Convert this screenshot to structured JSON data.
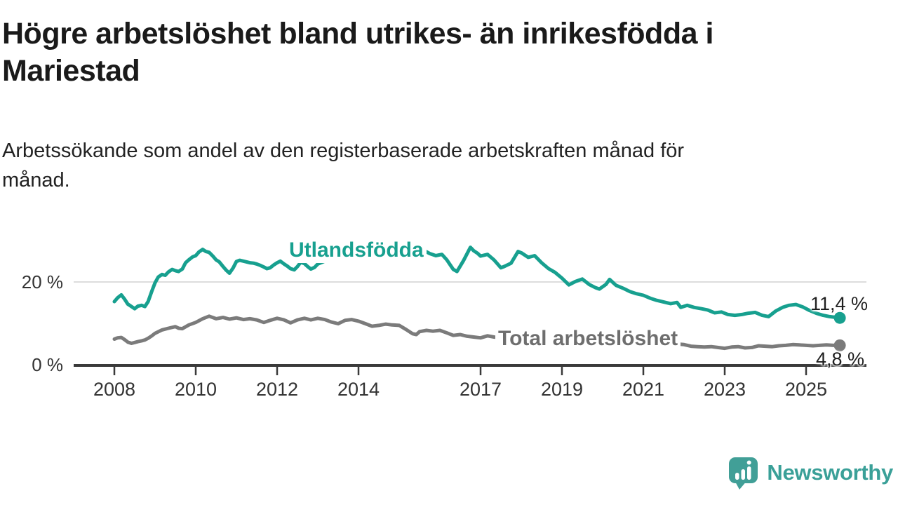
{
  "chart_data": {
    "type": "line",
    "title": "Högre arbetslöshet bland utrikes- än inrikesfödda i Mariestad",
    "subtitle": "Arbetssökande som andel av den registerbaserade arbetskraften månad för månad.",
    "x_axis": {
      "range": [
        2007.0,
        2026.5
      ],
      "ticks": [
        {
          "value": 2008,
          "label": "2008"
        },
        {
          "value": 2010,
          "label": "2010"
        },
        {
          "value": 2012,
          "label": "2012"
        },
        {
          "value": 2014,
          "label": "2014"
        },
        {
          "value": 2017,
          "label": "2017"
        },
        {
          "value": 2019,
          "label": "2019"
        },
        {
          "value": 2021,
          "label": "2021"
        },
        {
          "value": 2023,
          "label": "2023"
        },
        {
          "value": 2025,
          "label": "2025"
        }
      ]
    },
    "y_axis": {
      "range": [
        0,
        32
      ],
      "unit": "%",
      "ticks": [
        {
          "value": 0,
          "label": "0 %"
        },
        {
          "value": 20,
          "label": "20 %"
        }
      ],
      "gridlines": [
        20
      ]
    },
    "colors": {
      "axis": "#3a3a3a",
      "gridline": "#dddddd",
      "tick_text": "#333333"
    },
    "series": [
      {
        "name": "Utlandsfödda",
        "color": "#17a08f",
        "label_color": "#17a08f",
        "end_label": "11,4 %",
        "end_value": 11.4,
        "points": [
          [
            2008.0,
            15.3
          ],
          [
            2008.08,
            16.2
          ],
          [
            2008.17,
            16.9
          ],
          [
            2008.25,
            15.9
          ],
          [
            2008.33,
            14.7
          ],
          [
            2008.42,
            14.1
          ],
          [
            2008.5,
            13.6
          ],
          [
            2008.58,
            14.2
          ],
          [
            2008.67,
            14.4
          ],
          [
            2008.75,
            14.1
          ],
          [
            2008.83,
            15.3
          ],
          [
            2008.92,
            17.8
          ],
          [
            2009.0,
            19.8
          ],
          [
            2009.08,
            21.2
          ],
          [
            2009.17,
            21.8
          ],
          [
            2009.25,
            21.6
          ],
          [
            2009.33,
            22.4
          ],
          [
            2009.42,
            23.0
          ],
          [
            2009.5,
            22.7
          ],
          [
            2009.58,
            22.5
          ],
          [
            2009.67,
            23.1
          ],
          [
            2009.75,
            24.6
          ],
          [
            2009.83,
            25.3
          ],
          [
            2009.92,
            26.0
          ],
          [
            2010.0,
            26.3
          ],
          [
            2010.08,
            27.2
          ],
          [
            2010.17,
            27.8
          ],
          [
            2010.25,
            27.3
          ],
          [
            2010.33,
            27.1
          ],
          [
            2010.42,
            26.2
          ],
          [
            2010.5,
            25.3
          ],
          [
            2010.58,
            24.8
          ],
          [
            2010.67,
            23.7
          ],
          [
            2010.75,
            22.8
          ],
          [
            2010.83,
            22.1
          ],
          [
            2010.92,
            23.4
          ],
          [
            2011.0,
            24.9
          ],
          [
            2011.08,
            25.2
          ],
          [
            2011.17,
            25.0
          ],
          [
            2011.25,
            24.8
          ],
          [
            2011.33,
            24.6
          ],
          [
            2011.42,
            24.5
          ],
          [
            2011.5,
            24.3
          ],
          [
            2011.58,
            24.0
          ],
          [
            2011.67,
            23.6
          ],
          [
            2011.75,
            23.2
          ],
          [
            2011.83,
            23.4
          ],
          [
            2011.92,
            24.1
          ],
          [
            2012.0,
            24.6
          ],
          [
            2012.08,
            25.0
          ],
          [
            2012.17,
            24.3
          ],
          [
            2012.25,
            23.8
          ],
          [
            2012.33,
            23.2
          ],
          [
            2012.42,
            22.9
          ],
          [
            2012.5,
            23.7
          ],
          [
            2012.58,
            24.7
          ],
          [
            2012.67,
            24.4
          ],
          [
            2012.75,
            23.7
          ],
          [
            2012.83,
            23.1
          ],
          [
            2012.92,
            23.5
          ],
          [
            2013.0,
            24.3
          ],
          [
            2013.17,
            25.0
          ],
          [
            2013.33,
            25.4
          ],
          [
            2013.5,
            25.6
          ],
          [
            2013.67,
            25.8
          ],
          [
            2013.83,
            26.8
          ],
          [
            2014.0,
            28.4
          ],
          [
            2014.17,
            29.7
          ],
          [
            2014.33,
            29.3
          ],
          [
            2014.5,
            28.8
          ],
          [
            2014.67,
            29.0
          ],
          [
            2014.83,
            29.4
          ],
          [
            2015.0,
            29.6
          ],
          [
            2015.17,
            29.2
          ],
          [
            2015.33,
            28.2
          ],
          [
            2015.5,
            27.4
          ],
          [
            2015.6,
            27.6
          ],
          [
            2015.75,
            26.8
          ],
          [
            2015.9,
            26.3
          ],
          [
            2016.05,
            26.6
          ],
          [
            2016.17,
            25.3
          ],
          [
            2016.33,
            23.0
          ],
          [
            2016.42,
            22.5
          ],
          [
            2016.58,
            25.1
          ],
          [
            2016.75,
            28.3
          ],
          [
            2016.83,
            27.5
          ],
          [
            2016.92,
            26.9
          ],
          [
            2017.0,
            26.2
          ],
          [
            2017.17,
            26.6
          ],
          [
            2017.33,
            25.3
          ],
          [
            2017.5,
            23.4
          ],
          [
            2017.58,
            23.7
          ],
          [
            2017.75,
            24.5
          ],
          [
            2017.92,
            27.3
          ],
          [
            2018.0,
            27.0
          ],
          [
            2018.17,
            25.9
          ],
          [
            2018.33,
            26.3
          ],
          [
            2018.5,
            24.6
          ],
          [
            2018.67,
            23.2
          ],
          [
            2018.83,
            22.3
          ],
          [
            2019.0,
            20.9
          ],
          [
            2019.17,
            19.3
          ],
          [
            2019.33,
            20.1
          ],
          [
            2019.5,
            20.7
          ],
          [
            2019.67,
            19.4
          ],
          [
            2019.83,
            18.6
          ],
          [
            2019.92,
            18.3
          ],
          [
            2020.08,
            19.4
          ],
          [
            2020.17,
            20.6
          ],
          [
            2020.33,
            19.2
          ],
          [
            2020.5,
            18.5
          ],
          [
            2020.67,
            17.7
          ],
          [
            2020.83,
            17.2
          ],
          [
            2021.0,
            16.8
          ],
          [
            2021.17,
            16.1
          ],
          [
            2021.33,
            15.6
          ],
          [
            2021.5,
            15.2
          ],
          [
            2021.67,
            14.8
          ],
          [
            2021.83,
            15.1
          ],
          [
            2021.92,
            13.9
          ],
          [
            2022.08,
            14.4
          ],
          [
            2022.25,
            13.9
          ],
          [
            2022.42,
            13.6
          ],
          [
            2022.58,
            13.3
          ],
          [
            2022.75,
            12.6
          ],
          [
            2022.92,
            12.8
          ],
          [
            2023.08,
            12.2
          ],
          [
            2023.25,
            12.0
          ],
          [
            2023.42,
            12.2
          ],
          [
            2023.58,
            12.5
          ],
          [
            2023.75,
            12.7
          ],
          [
            2023.92,
            12.0
          ],
          [
            2024.08,
            11.7
          ],
          [
            2024.25,
            13.0
          ],
          [
            2024.42,
            13.9
          ],
          [
            2024.58,
            14.4
          ],
          [
            2024.75,
            14.6
          ],
          [
            2024.92,
            14.0
          ],
          [
            2025.08,
            13.2
          ],
          [
            2025.25,
            12.5
          ],
          [
            2025.42,
            12.0
          ],
          [
            2025.58,
            11.7
          ],
          [
            2025.75,
            11.5
          ],
          [
            2025.83,
            11.4
          ]
        ]
      },
      {
        "name": "Total arbetslöshet",
        "color": "#7b7b7b",
        "label_color": "#6e6e6e",
        "end_label": "4,8 %",
        "end_value": 4.8,
        "points": [
          [
            2008.0,
            6.3
          ],
          [
            2008.08,
            6.6
          ],
          [
            2008.17,
            6.7
          ],
          [
            2008.25,
            6.2
          ],
          [
            2008.33,
            5.6
          ],
          [
            2008.42,
            5.3
          ],
          [
            2008.5,
            5.5
          ],
          [
            2008.58,
            5.7
          ],
          [
            2008.67,
            5.9
          ],
          [
            2008.75,
            6.1
          ],
          [
            2008.83,
            6.5
          ],
          [
            2008.92,
            7.1
          ],
          [
            2009.0,
            7.7
          ],
          [
            2009.17,
            8.5
          ],
          [
            2009.33,
            8.9
          ],
          [
            2009.5,
            9.3
          ],
          [
            2009.58,
            8.9
          ],
          [
            2009.67,
            8.8
          ],
          [
            2009.83,
            9.7
          ],
          [
            2010.0,
            10.3
          ],
          [
            2010.17,
            11.2
          ],
          [
            2010.33,
            11.8
          ],
          [
            2010.5,
            11.2
          ],
          [
            2010.67,
            11.5
          ],
          [
            2010.83,
            11.1
          ],
          [
            2011.0,
            11.4
          ],
          [
            2011.17,
            11.0
          ],
          [
            2011.33,
            11.2
          ],
          [
            2011.5,
            10.9
          ],
          [
            2011.67,
            10.3
          ],
          [
            2011.83,
            10.8
          ],
          [
            2012.0,
            11.3
          ],
          [
            2012.17,
            10.9
          ],
          [
            2012.33,
            10.2
          ],
          [
            2012.5,
            10.9
          ],
          [
            2012.67,
            11.3
          ],
          [
            2012.83,
            10.9
          ],
          [
            2013.0,
            11.3
          ],
          [
            2013.17,
            11.0
          ],
          [
            2013.33,
            10.4
          ],
          [
            2013.5,
            10.0
          ],
          [
            2013.67,
            10.8
          ],
          [
            2013.83,
            11.0
          ],
          [
            2014.0,
            10.6
          ],
          [
            2014.17,
            10.0
          ],
          [
            2014.33,
            9.4
          ],
          [
            2014.5,
            9.6
          ],
          [
            2014.67,
            9.9
          ],
          [
            2014.83,
            9.7
          ],
          [
            2015.0,
            9.6
          ],
          [
            2015.17,
            8.6
          ],
          [
            2015.33,
            7.6
          ],
          [
            2015.42,
            7.4
          ],
          [
            2015.5,
            8.1
          ],
          [
            2015.67,
            8.4
          ],
          [
            2015.83,
            8.2
          ],
          [
            2016.0,
            8.4
          ],
          [
            2016.17,
            7.8
          ],
          [
            2016.33,
            7.2
          ],
          [
            2016.5,
            7.4
          ],
          [
            2016.67,
            7.0
          ],
          [
            2016.83,
            6.8
          ],
          [
            2017.0,
            6.6
          ],
          [
            2017.17,
            7.1
          ],
          [
            2017.33,
            6.8
          ],
          [
            2017.5,
            6.6
          ],
          [
            2017.75,
            6.4
          ],
          [
            2018.0,
            6.2
          ],
          [
            2018.5,
            6.0
          ],
          [
            2019.0,
            5.7
          ],
          [
            2019.5,
            5.5
          ],
          [
            2020.0,
            5.8
          ],
          [
            2020.5,
            6.0
          ],
          [
            2021.0,
            5.8
          ],
          [
            2021.5,
            5.4
          ],
          [
            2022.0,
            5.0
          ],
          [
            2022.17,
            4.6
          ],
          [
            2022.33,
            4.5
          ],
          [
            2022.5,
            4.4
          ],
          [
            2022.67,
            4.5
          ],
          [
            2022.83,
            4.3
          ],
          [
            2023.0,
            4.1
          ],
          [
            2023.17,
            4.4
          ],
          [
            2023.33,
            4.5
          ],
          [
            2023.5,
            4.2
          ],
          [
            2023.67,
            4.3
          ],
          [
            2023.83,
            4.7
          ],
          [
            2024.0,
            4.6
          ],
          [
            2024.17,
            4.5
          ],
          [
            2024.33,
            4.7
          ],
          [
            2024.5,
            4.8
          ],
          [
            2024.67,
            5.0
          ],
          [
            2024.83,
            4.9
          ],
          [
            2025.0,
            4.8
          ],
          [
            2025.17,
            4.7
          ],
          [
            2025.33,
            4.8
          ],
          [
            2025.5,
            4.9
          ],
          [
            2025.67,
            4.8
          ],
          [
            2025.83,
            4.8
          ]
        ]
      }
    ]
  },
  "footer": {
    "brand": "Newsworthy",
    "brand_color": "#3aa098",
    "icon_color": "#419f97"
  }
}
